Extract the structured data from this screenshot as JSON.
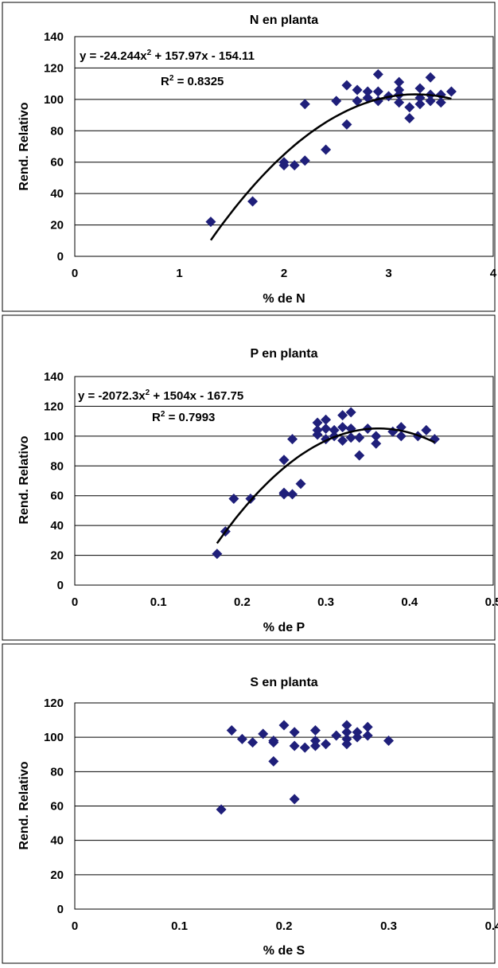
{
  "chart_data": [
    {
      "type": "scatter",
      "title": "N en planta",
      "xlabel": "% de N",
      "ylabel": "Rend. Relativo",
      "xlim": [
        0,
        4
      ],
      "ylim": [
        0,
        140
      ],
      "x_ticks": [
        "0",
        "1",
        "2",
        "3",
        "4"
      ],
      "y_ticks": [
        "0",
        "20",
        "40",
        "60",
        "80",
        "100",
        "120",
        "140"
      ],
      "grid": "horizontal",
      "marker": "diamond",
      "marker_color": "#1f1f7a",
      "trendline": {
        "type": "polynomial",
        "coefficients": [
          -24.244,
          157.97,
          -154.11
        ],
        "x_range": [
          1.3,
          3.6
        ],
        "equation": "y = -24.244x",
        "equation_rest": " + 157.97x - 154.11",
        "exponent": "2",
        "r2_label": "R",
        "r2_value": " = 0.8325"
      },
      "points": [
        [
          1.3,
          22
        ],
        [
          1.7,
          35
        ],
        [
          2.0,
          58
        ],
        [
          2.0,
          60
        ],
        [
          2.1,
          58
        ],
        [
          2.2,
          61
        ],
        [
          2.2,
          97
        ],
        [
          2.4,
          68
        ],
        [
          2.5,
          99
        ],
        [
          2.6,
          84
        ],
        [
          2.6,
          109
        ],
        [
          2.7,
          99
        ],
        [
          2.7,
          106
        ],
        [
          2.8,
          101
        ],
        [
          2.8,
          105
        ],
        [
          2.9,
          99
        ],
        [
          2.9,
          105
        ],
        [
          2.9,
          116
        ],
        [
          3.0,
          102
        ],
        [
          3.1,
          98
        ],
        [
          3.1,
          103
        ],
        [
          3.1,
          106
        ],
        [
          3.1,
          111
        ],
        [
          3.2,
          88
        ],
        [
          3.2,
          95
        ],
        [
          3.3,
          97
        ],
        [
          3.3,
          101
        ],
        [
          3.3,
          107
        ],
        [
          3.4,
          99
        ],
        [
          3.4,
          103
        ],
        [
          3.4,
          114
        ],
        [
          3.5,
          98
        ],
        [
          3.5,
          103
        ],
        [
          3.6,
          105
        ]
      ]
    },
    {
      "type": "scatter",
      "title": "P en planta",
      "xlabel": "% de P",
      "ylabel": "Rend. Relativo",
      "xlim": [
        0,
        0.5
      ],
      "ylim": [
        0,
        140
      ],
      "x_ticks": [
        "0",
        "0.1",
        "0.2",
        "0.3",
        "0.4",
        "0.5"
      ],
      "y_ticks": [
        "0",
        "20",
        "40",
        "60",
        "80",
        "100",
        "120",
        "140"
      ],
      "grid": "horizontal",
      "marker": "diamond",
      "marker_color": "#1f1f7a",
      "trendline": {
        "type": "polynomial",
        "coefficients": [
          -2072.3,
          1504,
          -167.75
        ],
        "x_range": [
          0.17,
          0.43
        ],
        "equation": "y = -2072.3x",
        "equation_rest": " + 1504x - 167.75",
        "exponent": "2",
        "r2_label": "R",
        "r2_value": " = 0.7993"
      },
      "points": [
        [
          0.17,
          21
        ],
        [
          0.18,
          36
        ],
        [
          0.19,
          58
        ],
        [
          0.21,
          58
        ],
        [
          0.25,
          61
        ],
        [
          0.25,
          62
        ],
        [
          0.25,
          84
        ],
        [
          0.26,
          61
        ],
        [
          0.26,
          98
        ],
        [
          0.27,
          68
        ],
        [
          0.29,
          101
        ],
        [
          0.29,
          104
        ],
        [
          0.29,
          109
        ],
        [
          0.3,
          98
        ],
        [
          0.3,
          105
        ],
        [
          0.3,
          111
        ],
        [
          0.31,
          100
        ],
        [
          0.31,
          104
        ],
        [
          0.32,
          97
        ],
        [
          0.32,
          106
        ],
        [
          0.32,
          114
        ],
        [
          0.33,
          99
        ],
        [
          0.33,
          105
        ],
        [
          0.33,
          116
        ],
        [
          0.34,
          87
        ],
        [
          0.34,
          99
        ],
        [
          0.35,
          105
        ],
        [
          0.36,
          95
        ],
        [
          0.36,
          100
        ],
        [
          0.38,
          103
        ],
        [
          0.39,
          100
        ],
        [
          0.39,
          106
        ],
        [
          0.41,
          100
        ],
        [
          0.42,
          104
        ],
        [
          0.43,
          98
        ]
      ]
    },
    {
      "type": "scatter",
      "title": "S en planta",
      "xlabel": "% de S",
      "ylabel": "Rend. Relativo",
      "xlim": [
        0,
        0.4
      ],
      "ylim": [
        0,
        120
      ],
      "x_ticks": [
        "0",
        "0.1",
        "0.2",
        "0.3",
        "0.4"
      ],
      "y_ticks": [
        "0",
        "20",
        "40",
        "60",
        "80",
        "100",
        "120"
      ],
      "grid": "horizontal",
      "marker": "diamond",
      "marker_color": "#1f1f7a",
      "points": [
        [
          0.14,
          58
        ],
        [
          0.15,
          104
        ],
        [
          0.16,
          99
        ],
        [
          0.17,
          97
        ],
        [
          0.18,
          102
        ],
        [
          0.19,
          86
        ],
        [
          0.19,
          97
        ],
        [
          0.19,
          98
        ],
        [
          0.2,
          107
        ],
        [
          0.21,
          64
        ],
        [
          0.21,
          95
        ],
        [
          0.21,
          103
        ],
        [
          0.22,
          94
        ],
        [
          0.23,
          95
        ],
        [
          0.23,
          98
        ],
        [
          0.23,
          104
        ],
        [
          0.24,
          96
        ],
        [
          0.25,
          101
        ],
        [
          0.26,
          96
        ],
        [
          0.26,
          99
        ],
        [
          0.26,
          103
        ],
        [
          0.26,
          107
        ],
        [
          0.27,
          100
        ],
        [
          0.27,
          103
        ],
        [
          0.28,
          101
        ],
        [
          0.28,
          106
        ],
        [
          0.3,
          98
        ]
      ]
    }
  ]
}
